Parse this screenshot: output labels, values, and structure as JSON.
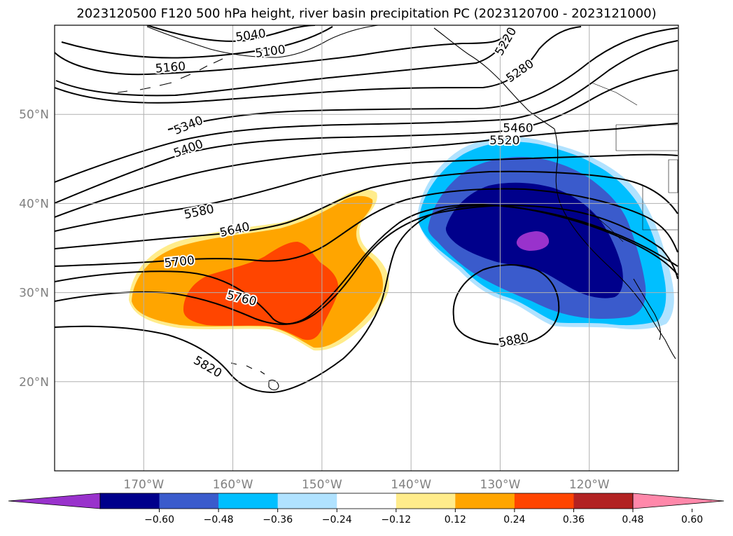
{
  "title": "2023120500 F120 500 hPa height, river basin precipitation PC (2023120700 - 2023121000)",
  "map": {
    "lon_range": [
      -180,
      -110
    ],
    "lat_range": [
      10,
      60
    ],
    "lat_ticks": [
      {
        "value": 50,
        "label": "50°N"
      },
      {
        "value": 40,
        "label": "40°N"
      },
      {
        "value": 30,
        "label": "30°N"
      },
      {
        "value": 20,
        "label": "20°N"
      }
    ],
    "lon_ticks": [
      {
        "value": -170,
        "label": "170°W"
      },
      {
        "value": -160,
        "label": "160°W"
      },
      {
        "value": -150,
        "label": "150°W"
      },
      {
        "value": -140,
        "label": "140°W"
      },
      {
        "value": -130,
        "label": "130°W"
      },
      {
        "value": -120,
        "label": "120°W"
      }
    ],
    "grid": true,
    "contour_labels": [
      {
        "text": "5040",
        "lon": -158,
        "lat": 58.9,
        "angle": -8
      },
      {
        "text": "5100",
        "lon": -155.8,
        "lat": 57.1,
        "angle": -8
      },
      {
        "text": "5160",
        "lon": -167,
        "lat": 55.3,
        "angle": -5
      },
      {
        "text": "5220",
        "lon": -129.4,
        "lat": 58.2,
        "angle": -60
      },
      {
        "text": "5280",
        "lon": -127.8,
        "lat": 54.9,
        "angle": -35
      },
      {
        "text": "5340",
        "lon": -165,
        "lat": 48.8,
        "angle": -22
      },
      {
        "text": "5400",
        "lon": -165,
        "lat": 46.2,
        "angle": -20
      },
      {
        "text": "5460",
        "lon": -128,
        "lat": 48.5,
        "angle": 0
      },
      {
        "text": "5520",
        "lon": -129.5,
        "lat": 47.1,
        "angle": 0
      },
      {
        "text": "5580",
        "lon": -163.8,
        "lat": 39.1,
        "angle": -12
      },
      {
        "text": "5640",
        "lon": -159.8,
        "lat": 37.1,
        "angle": -13
      },
      {
        "text": "5700",
        "lon": -166,
        "lat": 33.5,
        "angle": -6
      },
      {
        "text": "5760",
        "lon": -159,
        "lat": 29.4,
        "angle": 14
      },
      {
        "text": "5820",
        "lon": -162.8,
        "lat": 21.7,
        "angle": 30
      },
      {
        "text": "5880",
        "lon": -128.5,
        "lat": 24.7,
        "angle": -12
      }
    ],
    "precip_regions": [
      {
        "name": "negative-pc-anomaly",
        "sign": "negative",
        "peak_level": "< -0.60",
        "center_lon": -131,
        "center_lat": 35
      },
      {
        "name": "positive-pc-anomaly",
        "sign": "positive",
        "peak_level": "0.36 to 0.48",
        "center_lon": -155,
        "center_lat": 30
      }
    ]
  },
  "colorbar": {
    "colors": [
      "#9932cc",
      "#00008b",
      "#3a5bcc",
      "#00bfff",
      "#b0e2ff",
      "#ffffff",
      "#ffec8b",
      "#ffa500",
      "#ff4500",
      "#b22222",
      "#ff88aa"
    ],
    "labels": [
      "−0.60",
      "−0.48",
      "−0.36",
      "−0.24",
      "−0.12",
      "0.12",
      "0.24",
      "0.36",
      "0.48",
      "0.60"
    ]
  }
}
